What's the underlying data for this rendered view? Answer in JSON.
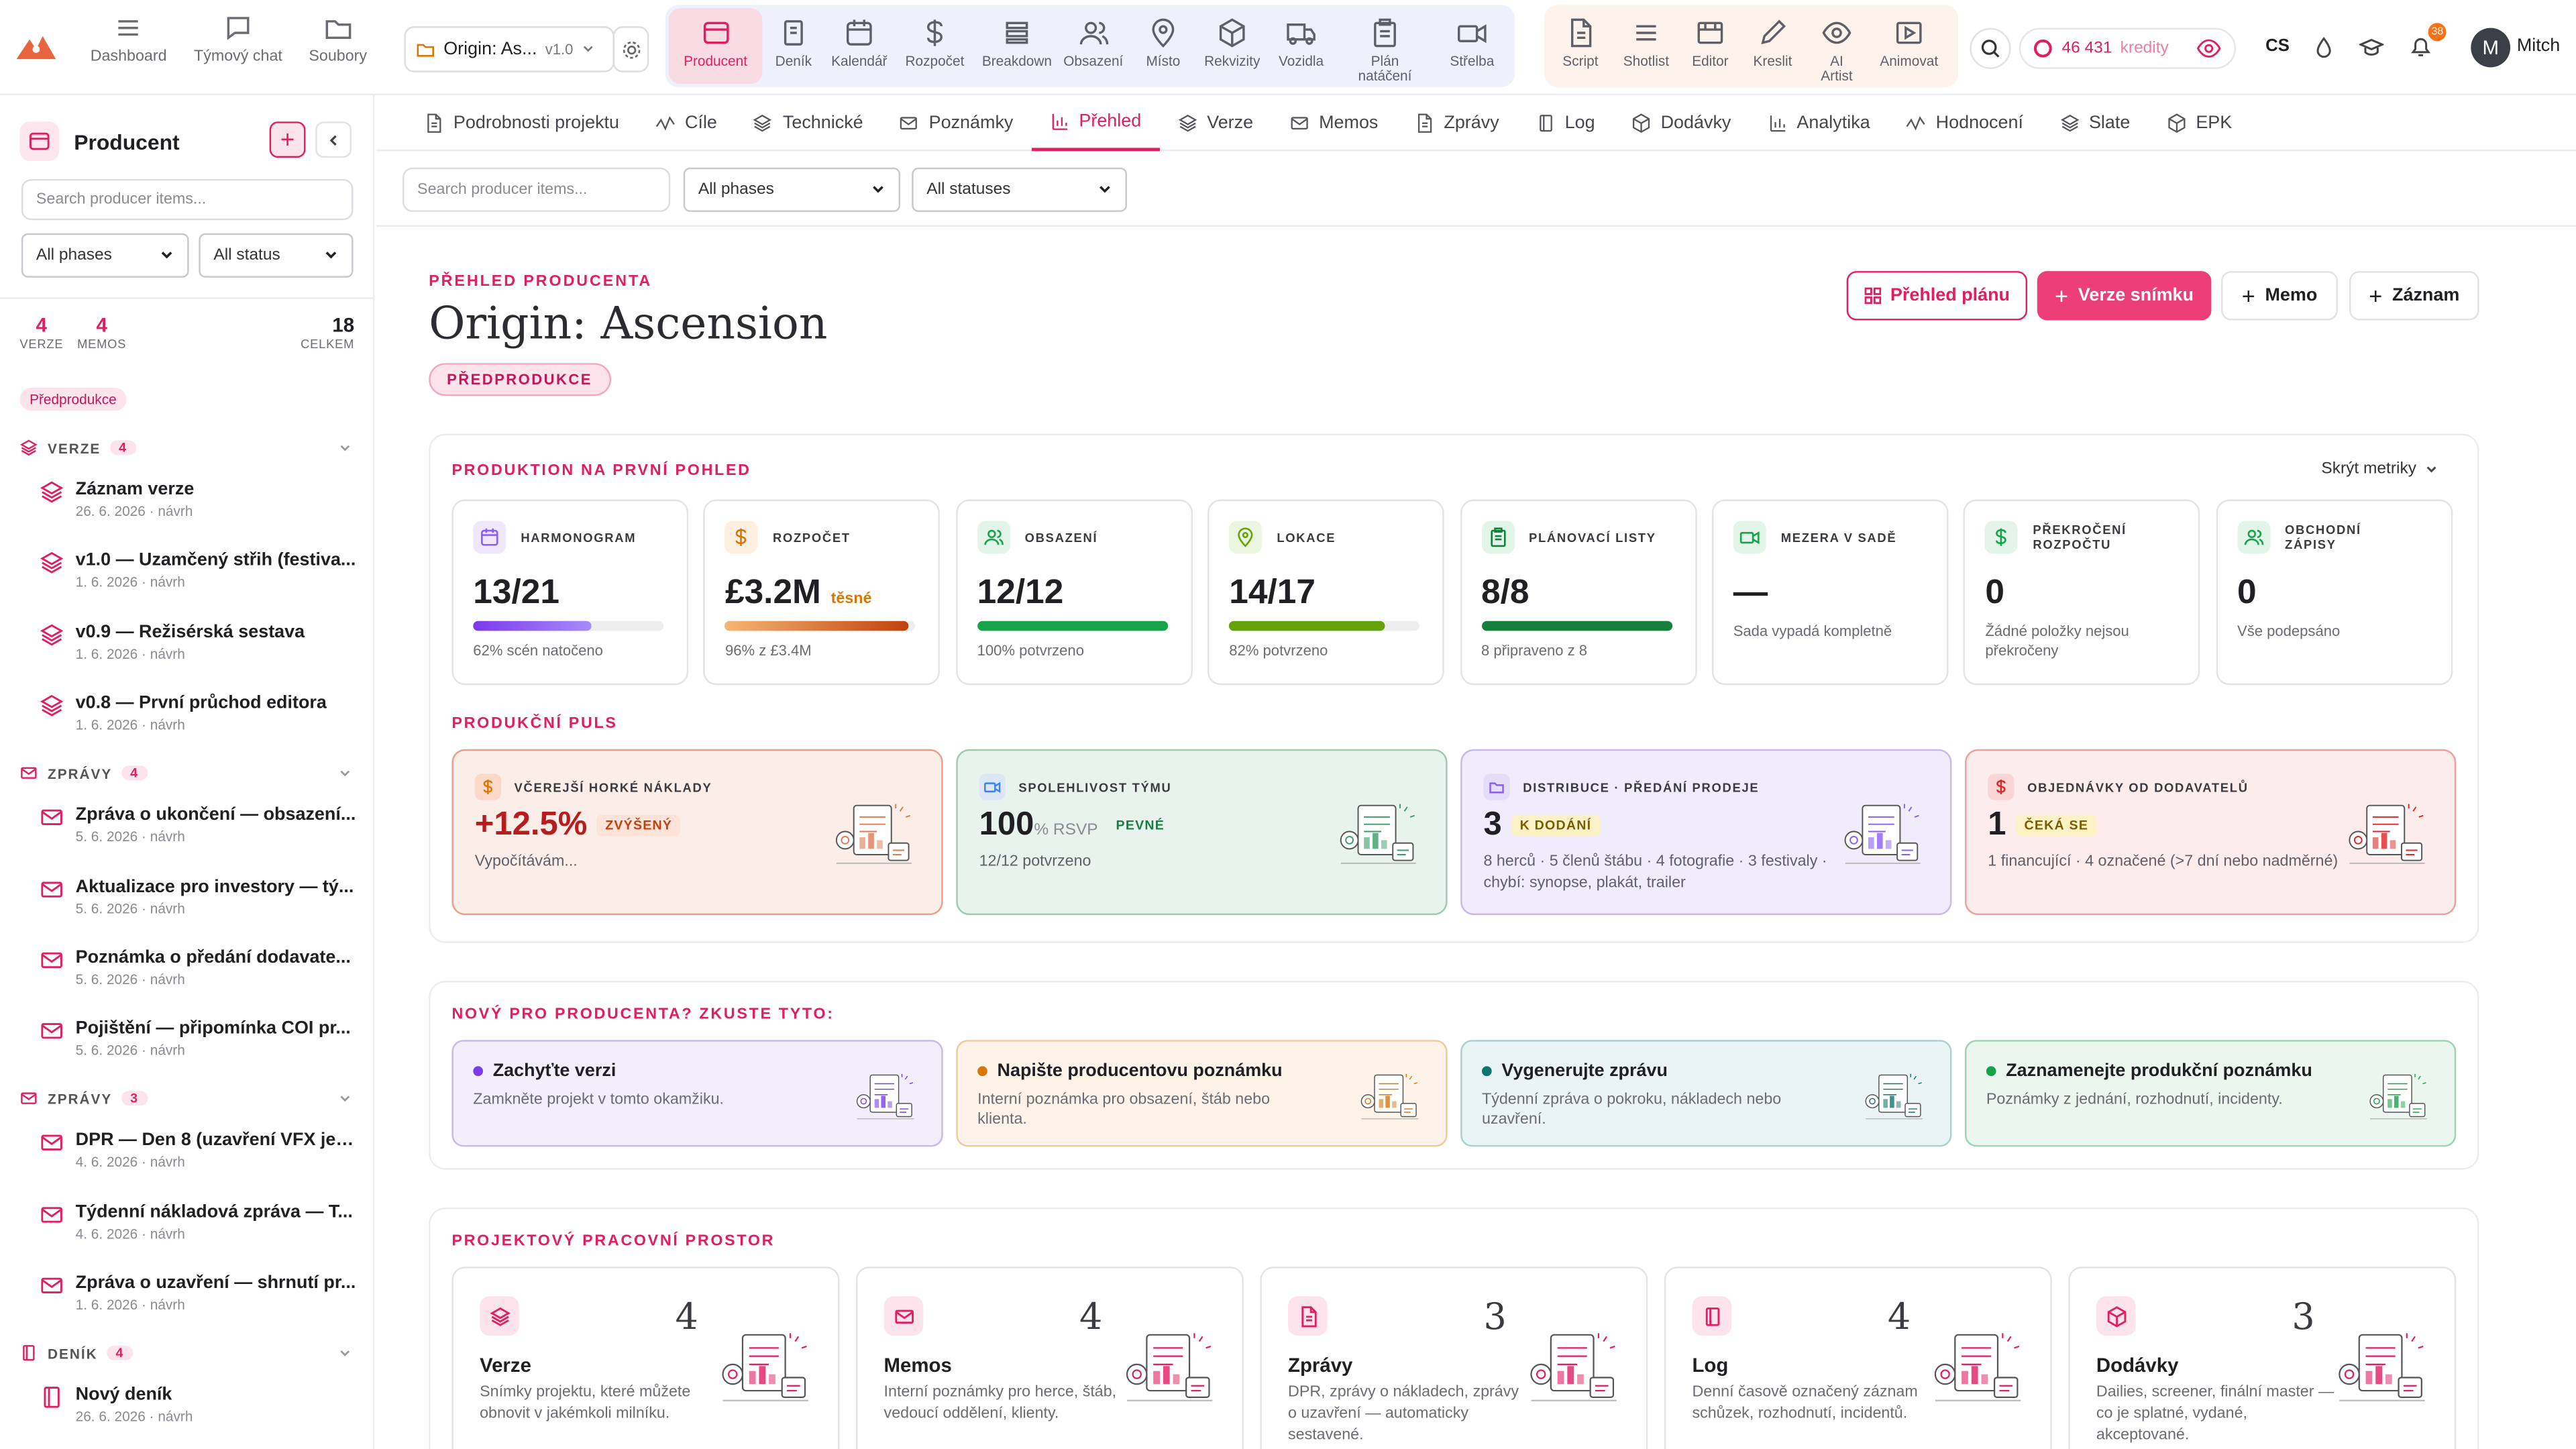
{
  "topnav": {
    "items": [
      {
        "label": "Dashboard",
        "icon": "grid-lines-icon"
      },
      {
        "label": "Týmový chat",
        "icon": "chat-icon"
      },
      {
        "label": "Soubory",
        "icon": "folder-icon"
      }
    ],
    "project": {
      "name": "Origin: As...",
      "version": "v1.0"
    },
    "tools_primary": [
      {
        "label": "Producent",
        "icon": "producer-icon",
        "active": true
      },
      {
        "label": "Deník",
        "icon": "journal-icon"
      },
      {
        "label": "Kalendář",
        "icon": "calendar-icon"
      },
      {
        "label": "Rozpočet",
        "icon": "dollar-icon"
      },
      {
        "label": "Breakdown",
        "icon": "list-icon"
      },
      {
        "label": "Obsazení",
        "icon": "people-icon"
      },
      {
        "label": "Místo",
        "icon": "pin-icon"
      },
      {
        "label": "Rekvizity",
        "icon": "cube-icon"
      },
      {
        "label": "Vozidla",
        "icon": "truck-icon"
      },
      {
        "label": "Plán natáčení",
        "icon": "clipboard-icon"
      },
      {
        "label": "Střelba",
        "icon": "camera-icon"
      }
    ],
    "tools_secondary": [
      {
        "label": "Script",
        "icon": "document-icon"
      },
      {
        "label": "Shotlist",
        "icon": "menu-icon"
      },
      {
        "label": "Editor",
        "icon": "film-editor-icon"
      },
      {
        "label": "Kreslit",
        "icon": "pencil-icon"
      },
      {
        "label": "AI Artist",
        "icon": "eye-icon"
      },
      {
        "label": "Animovat",
        "icon": "play-image-icon"
      }
    ],
    "credits": {
      "amount": "46 431",
      "label": "kredity"
    },
    "language": "CS",
    "notifications": "38",
    "user": {
      "initial": "M",
      "name": "Mitch"
    }
  },
  "sidebar": {
    "title": "Producent",
    "search_placeholder": "Search producer items...",
    "phase_filter": "All phases",
    "status_filter": "All status",
    "stats": [
      {
        "value": "4",
        "label": "VERZE"
      },
      {
        "value": "4",
        "label": "MEMOS"
      },
      {
        "value": "18",
        "label": "CELKEM"
      }
    ],
    "phase_pill": "Předprodukce",
    "sections": [
      {
        "label": "VERZE",
        "count": "4",
        "items": [
          {
            "title": "Záznam verze",
            "date": "26. 6. 2026 · návrh"
          },
          {
            "title": "v1.0 — Uzamčený střih (festiva...",
            "date": "1. 6. 2026 · návrh"
          },
          {
            "title": "v0.9 — Režisérská sestava",
            "date": "1. 6. 2026 · návrh"
          },
          {
            "title": "v0.8 — První průchod editora",
            "date": "1. 6. 2026 · návrh"
          }
        ]
      },
      {
        "label": "ZPRÁVY",
        "count": "4",
        "items": [
          {
            "title": "Zpráva o ukončení — obsazení...",
            "date": "5. 6. 2026 · návrh"
          },
          {
            "title": "Aktualizace pro investory — tý...",
            "date": "5. 6. 2026 · návrh"
          },
          {
            "title": "Poznámka o předání dodavate...",
            "date": "5. 6. 2026 · návrh"
          },
          {
            "title": "Pojištění — připomínka COI pr...",
            "date": "5. 6. 2026 · návrh"
          }
        ]
      },
      {
        "label": "ZPRÁVY",
        "count": "3",
        "items": [
          {
            "title": "DPR — Den 8 (uzavření VFX jed...",
            "date": "4. 6. 2026 · návrh"
          },
          {
            "title": "Týdenní nákladová zpráva — T...",
            "date": "4. 6. 2026 · návrh"
          },
          {
            "title": "Zpráva o uzavření — shrnutí pr...",
            "date": "1. 6. 2026 · návrh"
          }
        ]
      },
      {
        "label": "DENÍK",
        "count": "4",
        "items": [
          {
            "title": "Nový deník",
            "date": "26. 6. 2026 · návrh"
          }
        ]
      }
    ]
  },
  "tabs": [
    {
      "label": "Podrobnosti projektu",
      "icon": "doc-icon"
    },
    {
      "label": "Cíle",
      "icon": "trend-icon"
    },
    {
      "label": "Technické",
      "icon": "layers-icon"
    },
    {
      "label": "Poznámky",
      "icon": "mail-icon"
    },
    {
      "label": "Přehled",
      "icon": "bar-chart-icon",
      "active": true
    },
    {
      "label": "Verze",
      "icon": "layers-icon"
    },
    {
      "label": "Memos",
      "icon": "mail-icon"
    },
    {
      "label": "Zprávy",
      "icon": "doc-icon"
    },
    {
      "label": "Log",
      "icon": "book-icon"
    },
    {
      "label": "Dodávky",
      "icon": "package-icon"
    },
    {
      "label": "Analytika",
      "icon": "bar-chart-icon"
    },
    {
      "label": "Hodnocení",
      "icon": "trend-icon"
    },
    {
      "label": "Slate",
      "icon": "layers-icon"
    },
    {
      "label": "EPK",
      "icon": "package-icon"
    }
  ],
  "filters": {
    "search_placeholder": "Search producer items...",
    "phases": "All phases",
    "statuses": "All statuses"
  },
  "header": {
    "eyebrow": "PŘEHLED PRODUCENTA",
    "title": "Origin: Ascension",
    "phase": "PŘEDPRODUKCE",
    "buttons": {
      "plan": "Přehled plánu",
      "snapshot": "Verze snímku",
      "memo": "Memo",
      "record": "Záznam"
    }
  },
  "glance": {
    "heading": "PRODUKTION NA PRVNÍ POHLED",
    "toggle": "Skrýt metriky",
    "metrics": [
      {
        "label": "HARMONOGRAM",
        "value": "13/21",
        "progress": 0.62,
        "sub": "62% scén natočeno",
        "color": "#8b5cf6",
        "bg": "#efe8fd",
        "icon": "calendar-icon"
      },
      {
        "label": "ROZPOČET",
        "value": "£3.2M",
        "tag": "těsné",
        "progress": 0.96,
        "sub": "96% z £3.4M",
        "color": "#d97706",
        "bg": "#fdf0e1",
        "icon": "dollar-icon"
      },
      {
        "label": "OBSAZENÍ",
        "value": "12/12",
        "progress": 1.0,
        "sub": "100% potvrzeno",
        "color": "#16a34a",
        "bg": "#e3f5e8",
        "icon": "people-icon"
      },
      {
        "label": "LOKACE",
        "value": "14/17",
        "progress": 0.82,
        "sub": "82% potvrzeno",
        "color": "#65a30d",
        "bg": "#eaf6df",
        "icon": "pin-icon"
      },
      {
        "label": "PLÁNOVACÍ LISTY",
        "value": "8/8",
        "progress": 1.0,
        "sub": "8 připraveno z 8",
        "color": "#15803d",
        "bg": "#e3f5e8",
        "icon": "clipboard-icon"
      },
      {
        "label": "MEZERA V SADĚ",
        "value": "—",
        "sub": "Sada vypadá kompletně",
        "color": "#16a34a",
        "bg": "#e3f5e8",
        "icon": "camera-icon"
      },
      {
        "label": "PŘEKROČENÍ ROZPOČTU",
        "value": "0",
        "sub": "Žádné položky nejsou překročeny",
        "color": "#16a34a",
        "bg": "#e3f5e8",
        "icon": "dollar-icon"
      },
      {
        "label": "OBCHODNÍ ZÁPISY",
        "value": "0",
        "sub": "Vše podepsáno",
        "color": "#16a34a",
        "bg": "#e3f5e8",
        "icon": "people-icon"
      }
    ]
  },
  "pulse": {
    "heading": "PRODUKČNÍ PULS",
    "cards": [
      {
        "label": "VČEREJŠÍ HORKÉ NÁKLADY",
        "value": "+12.5%",
        "unit": "",
        "badge": "ZVÝŠENÝ",
        "sub": "Vypočítávám...",
        "bg": "#fbede8",
        "border": "#e8a08a",
        "value_color": "#b91c1c",
        "badge_bg": "#fde3d8",
        "badge_color": "#c2410c",
        "icon": "dollar-icon",
        "ibg": "#fbd9c9",
        "icolor": "#d97706"
      },
      {
        "label": "SPOLEHLIVOST TÝMU",
        "value": "100",
        "unit": "% RSVP",
        "badge": "PEVNÉ",
        "sub": "12/12 potvrzeno",
        "bg": "#e8f3ee",
        "border": "#9ccbb2",
        "value_color": "#1f1f24",
        "badge_bg": "#e8f3ee",
        "badge_color": "#15803d",
        "icon": "camera-icon",
        "ibg": "#dce6f5",
        "icolor": "#3b82f6"
      },
      {
        "label": "DISTRIBUCE · PŘEDÁNÍ PRODEJE",
        "value": "3",
        "unit": "",
        "badge": "K DODÁNÍ",
        "sub": "8 herců · 5 členů štábu · 4 fotografie · 3 festivaly · chybí: synopse, plakát, trailer",
        "bg": "#f1ecfb",
        "border": "#c9b8ee",
        "value_color": "#1f1f24",
        "badge_bg": "#fdf1c6",
        "badge_color": "#7a5d00",
        "icon": "folder-icon",
        "ibg": "#e5dcf8",
        "icolor": "#8b5cf6"
      },
      {
        "label": "OBJEDNÁVKY OD DODAVATELŮ",
        "value": "1",
        "unit": "",
        "badge": "ČEKÁ SE",
        "sub": "1 financující · 4 označené (>7 dní nebo nadměrné)",
        "bg": "#fcecec",
        "border": "#eda0a0",
        "value_color": "#1f1f24",
        "badge_bg": "#fdf1c6",
        "badge_color": "#7a5d00",
        "icon": "dollar-icon",
        "ibg": "#f9d6d6",
        "icolor": "#dc2626"
      }
    ]
  },
  "try": {
    "heading": "NOVÝ PRO PRODUCENTA? ZKUSTE TYTO:",
    "cards": [
      {
        "title": "Zachyťte verzi",
        "sub": "Zamkněte projekt v tomto okamžiku.",
        "bg": "#f3eefc",
        "border": "#c9b8ee",
        "dot": "#7c3aed"
      },
      {
        "title": "Napište producentovu poznámku",
        "sub": "Interní poznámka pro obsazení, štáb nebo klienta.",
        "bg": "#fdf3e9",
        "border": "#f0c89a",
        "dot": "#d97706"
      },
      {
        "title": "Vygenerujte zprávu",
        "sub": "Týdenní zpráva o pokroku, nákladech nebo uzavření.",
        "bg": "#eaf4f5",
        "border": "#a6d0d6",
        "dot": "#0f766e"
      },
      {
        "title": "Zaznamenejte produkční poznámku",
        "sub": "Poznámky z jednání, rozhodnutí, incidenty.",
        "bg": "#ebf6ee",
        "border": "#9fd3ae",
        "dot": "#16a34a"
      }
    ]
  },
  "workspace": {
    "heading": "PROJEKTOVÝ PRACOVNÍ PROSTOR",
    "cards": [
      {
        "title": "Verze",
        "count": "4",
        "sub": "Snímky projektu, které můžete obnovit v jakémkoli milníku.",
        "icon": "layers-icon"
      },
      {
        "title": "Memos",
        "count": "4",
        "sub": "Interní poznámky pro herce, štáb, vedoucí oddělení, klienty.",
        "icon": "mail-icon"
      },
      {
        "title": "Zprávy",
        "count": "3",
        "sub": "DPR, zprávy o nákladech, zprávy o uzavření — automaticky sestavené.",
        "icon": "doc-icon"
      },
      {
        "title": "Log",
        "count": "4",
        "sub": "Denní časově označený záznam schůzek, rozhodnutí, incidentů.",
        "icon": "book-icon"
      },
      {
        "title": "Dodávky",
        "count": "3",
        "sub": "Dailies, screener, finální master — co je splatné, vydané, akceptované.",
        "icon": "package-icon"
      }
    ]
  },
  "colors": {
    "accent": "#e11d63",
    "accent_soft": "#fde4ec"
  }
}
